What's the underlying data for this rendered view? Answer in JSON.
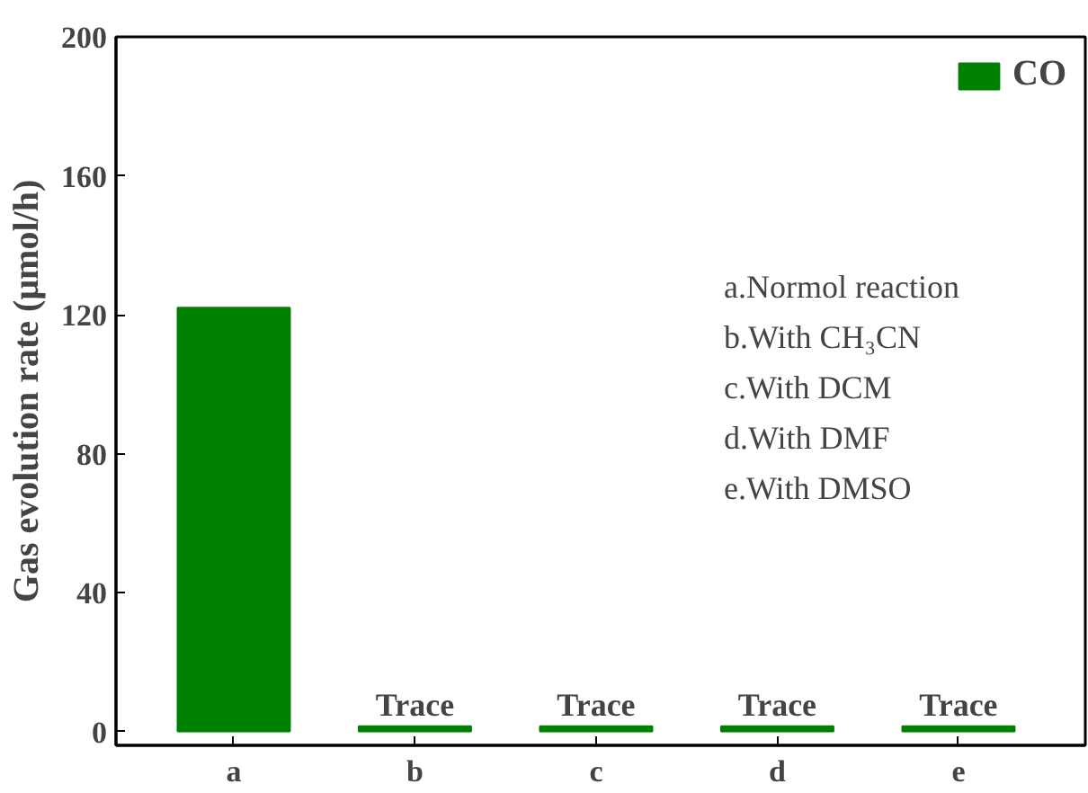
{
  "chart_data": {
    "type": "bar",
    "ylabel": "Gas evolution rate (μmol/h)",
    "categories": [
      "a",
      "b",
      "c",
      "d",
      "e"
    ],
    "series": [
      {
        "name": "CO",
        "color": "#008000",
        "values": [
          122,
          1.5,
          1.5,
          1.5,
          1.5
        ],
        "value_labels": [
          null,
          "Trace",
          "Trace",
          "Trace",
          "Trace"
        ]
      }
    ],
    "ylim": [
      -4,
      200
    ],
    "yticks": [
      0,
      40,
      80,
      120,
      160,
      200
    ],
    "grid": false,
    "legend": "top right",
    "annotations": [
      "a.Normol reaction",
      "b.With CH₃CN",
      "c.With DCM",
      "d.With DMF",
      "e.With DMSO"
    ]
  }
}
